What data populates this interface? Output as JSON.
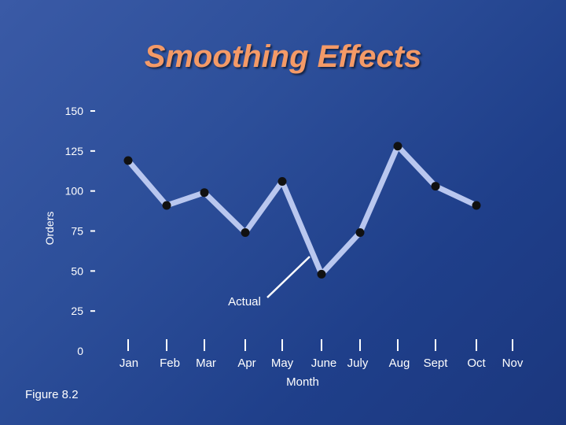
{
  "chart_data": {
    "type": "line",
    "title": "Smoothing Effects",
    "xlabel": "Month",
    "ylabel": "Orders",
    "categories": [
      "Jan",
      "Feb",
      "Mar",
      "Apr",
      "May",
      "June",
      "July",
      "Aug",
      "Sept",
      "Oct",
      "Nov"
    ],
    "series": [
      {
        "name": "Actual",
        "values": [
          119,
          91,
          99,
          74,
          106,
          48,
          74,
          128,
          103,
          91,
          null
        ]
      }
    ],
    "ylim": [
      0,
      150
    ],
    "yticks": [
      0,
      25,
      50,
      75,
      100,
      125,
      150
    ],
    "annotations": [
      {
        "text": "Actual",
        "target_series": "Actual"
      }
    ],
    "grid": false,
    "legend": "none"
  },
  "caption": "Figure 8.2",
  "colors": {
    "line": "#b9c7ef",
    "marker": "#111111",
    "title": "#f49a67",
    "axis": "#ffffff"
  }
}
